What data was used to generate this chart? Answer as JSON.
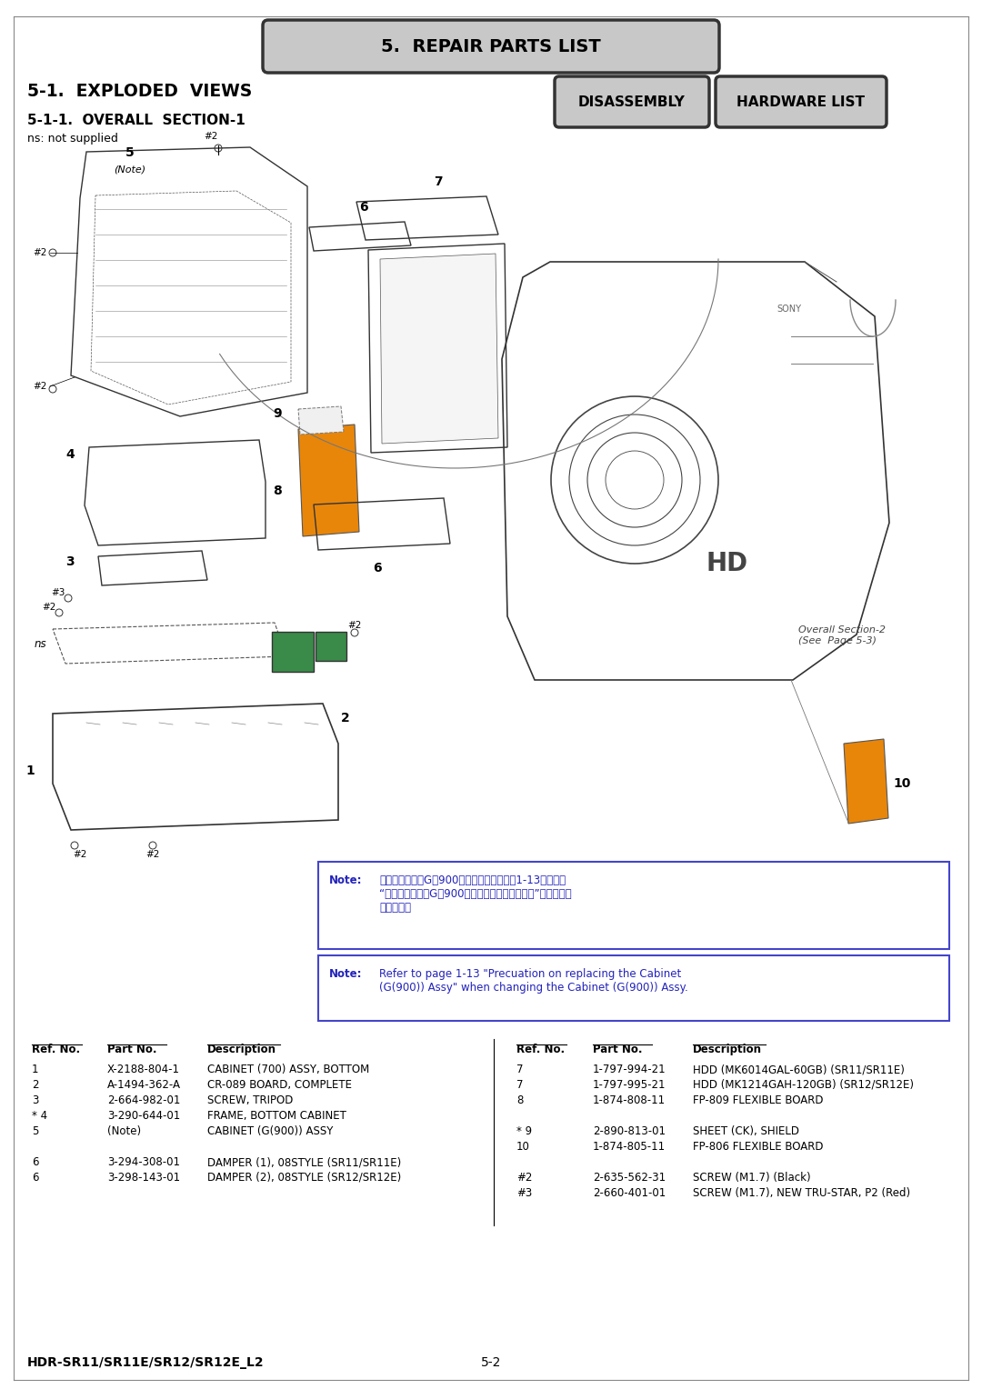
{
  "page_bg": "#ffffff",
  "title_bar": "5.  REPAIR PARTS LIST",
  "title_bar_bg": "#c8c8c8",
  "title_bar_border": "#333333",
  "section_title": "5-1.  EXPLODED  VIEWS",
  "subsection_title": "5-1-1.  OVERALL  SECTION-1",
  "ns_note": "ns: not supplied",
  "btn1": "DISASSEMBLY",
  "btn2": "HARDWARE LIST",
  "btn_bg": "#c8c8c8",
  "btn_border": "#333333",
  "note_box1_border": "#4444cc",
  "note_box1_text_label": "Note:",
  "note_box1_text_jp": "キャビネット（G（900））組立の交換時は1-13ページの\n“キャビネット（G（900））組立の交換時の注意”を参照して\nください。",
  "note_box2_border": "#4444cc",
  "note_box2_text_label": "Note:",
  "note_box2_text_en": "Refer to page 1-13 \"Precuation on replacing the Cabinet\n(G(900)) Assy\" when changing the Cabinet (G(900)) Assy.",
  "table_header_color": "#000000",
  "parts_left": [
    {
      "ref": "1",
      "star": false,
      "part": "X-2188-804-1",
      "desc": "CABINET (700) ASSY, BOTTOM"
    },
    {
      "ref": "2",
      "star": false,
      "part": "A-1494-362-A",
      "desc": "CR-089 BOARD, COMPLETE"
    },
    {
      "ref": "3",
      "star": false,
      "part": "2-664-982-01",
      "desc": "SCREW, TRIPOD"
    },
    {
      "ref": "4",
      "star": true,
      "part": "3-290-644-01",
      "desc": "FRAME, BOTTOM CABINET"
    },
    {
      "ref": "5",
      "star": false,
      "part": "(Note)",
      "desc": "CABINET (G(900)) ASSY"
    },
    {
      "ref": "",
      "star": false,
      "part": "",
      "desc": ""
    },
    {
      "ref": "6",
      "star": false,
      "part": "3-294-308-01",
      "desc": "DAMPER (1), 08STYLE (SR11/SR11E)"
    },
    {
      "ref": "6",
      "star": false,
      "part": "3-298-143-01",
      "desc": "DAMPER (2), 08STYLE (SR12/SR12E)"
    }
  ],
  "parts_right": [
    {
      "ref": "7",
      "star": false,
      "part": "1-797-994-21",
      "desc": "HDD (MK6014GAL-60GB) (SR11/SR11E)"
    },
    {
      "ref": "7",
      "star": false,
      "part": "1-797-995-21",
      "desc": "HDD (MK1214GAH-120GB) (SR12/SR12E)"
    },
    {
      "ref": "8",
      "star": false,
      "part": "1-874-808-11",
      "desc": "FP-809 FLEXIBLE BOARD"
    },
    {
      "ref": "",
      "star": false,
      "part": "",
      "desc": ""
    },
    {
      "ref": "9",
      "star": true,
      "part": "2-890-813-01",
      "desc": "SHEET (CK), SHIELD"
    },
    {
      "ref": "10",
      "star": false,
      "part": "1-874-805-11",
      "desc": "FP-806 FLEXIBLE BOARD"
    },
    {
      "ref": "",
      "star": false,
      "part": "",
      "desc": ""
    },
    {
      "ref": "#2",
      "star": false,
      "part": "2-635-562-31",
      "desc": "SCREW (M1.7) (Black)"
    },
    {
      "ref": "#3",
      "star": false,
      "part": "2-660-401-01",
      "desc": "SCREW (M1.7), NEW TRU-STAR, P2 (Red)"
    }
  ],
  "footer_model": "HDR-SR11/SR11E/SR12/SR12E_L2",
  "footer_page": "5-2",
  "overall_section_note": "Overall Section-2\n(See  Page 5-3)"
}
